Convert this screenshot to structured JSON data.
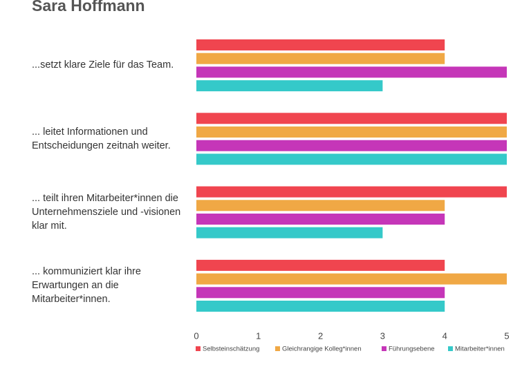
{
  "chart_data": {
    "type": "barh",
    "title": "Sara Hoffmann",
    "categories": [
      "...setzt klare Ziele für das Team.",
      "... leitet Informationen und Entscheidungen zeitnah weiter.",
      "... teilt ihren Mitarbeiter*innen die Unternehmensziele und -visionen klar mit.",
      "... kommuniziert klar ihre Erwartungen an die Mitarbeiter*innen."
    ],
    "series": [
      {
        "name": "Selbsteinschätzung",
        "color": "#f0454f",
        "values": [
          4,
          5,
          5,
          4
        ]
      },
      {
        "name": "Gleichrangige Kolleg*innen",
        "color": "#f0a845",
        "values": [
          4,
          5,
          4,
          5
        ]
      },
      {
        "name": "Führungsebene",
        "color": "#c536b8",
        "values": [
          5,
          5,
          4,
          4
        ]
      },
      {
        "name": "Mitarbeiter*innen",
        "color": "#35c9c9",
        "values": [
          3,
          5,
          3,
          4
        ]
      }
    ],
    "xlim": [
      0,
      5
    ],
    "xticks": [
      0,
      1,
      2,
      3,
      4,
      5
    ],
    "grid": false,
    "legend": "bottom"
  }
}
